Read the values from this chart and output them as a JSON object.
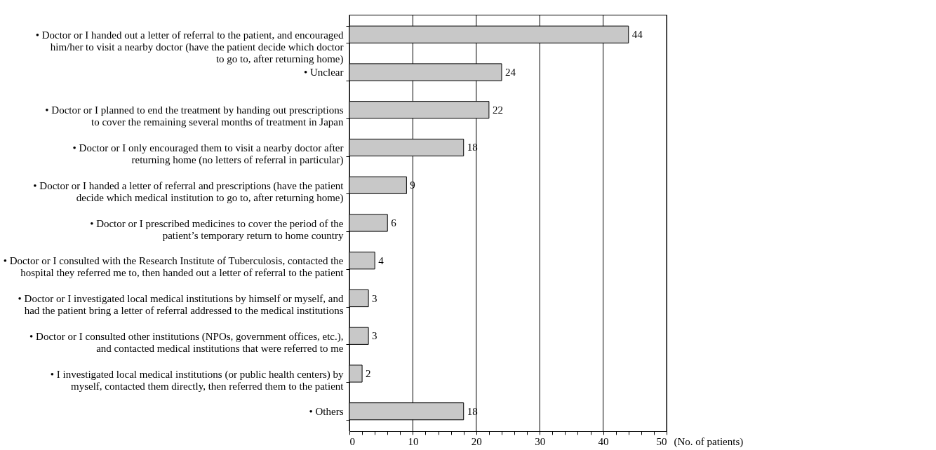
{
  "chart_data": {
    "type": "bar",
    "orientation": "horizontal",
    "categories": [
      "• Doctor or I handed out a letter of referral to the patient, and encouraged\nhim/her to visit a nearby doctor (have the patient decide which doctor\nto go to, after returning home)",
      "• Unclear",
      "• Doctor or I planned to end the treatment by handing out prescriptions\nto cover the remaining several months of treatment in Japan",
      "• Doctor or I only encouraged them to visit a nearby doctor after\nreturning home (no letters of  referral in particular)",
      "• Doctor or I  handed a letter of referral and prescriptions (have the patient\ndecide which medical institution to go to, after returning home)",
      "• Doctor or I prescribed medicines to cover the period of the\npatient’s temporary return to home country",
      "• Doctor or I consulted with the Research Institute of Tuberculosis, contacted the\nhospital they referred me to, then handed out a letter of referral to the patient",
      "• Doctor or I investigated local medical institutions by himself or myself, and\nhad the patient bring a letter of referral addressed to the medical institutions",
      "• Doctor or I consulted other institutions (NPOs, government offices, etc.),\nand contacted medical institutions that were referred to me",
      "• I investigated local medical institutions (or public health centers) by\nmyself, contacted them directly, then referred them to the patient",
      "• Others"
    ],
    "values": [
      44,
      24,
      22,
      18,
      9,
      6,
      4,
      3,
      3,
      2,
      18
    ],
    "color": "#c8c8c8",
    "data_labels": true,
    "xlabel": "(No. of patients)",
    "xlim": [
      0,
      50
    ],
    "xticks": [
      0,
      {
        "value": 2,
        "label": null
      },
      {
        "value": 4,
        "label": null
      },
      {
        "value": 6,
        "label": null
      },
      {
        "value": 8,
        "label": null
      },
      10,
      {
        "value": 12,
        "label": null
      },
      {
        "value": 14,
        "label": null
      },
      {
        "value": 16,
        "label": null
      },
      {
        "value": 18,
        "label": null
      },
      20,
      {
        "value": 22,
        "label": null
      },
      {
        "value": 24,
        "label": null
      },
      {
        "value": 26,
        "label": null
      },
      {
        "value": 28,
        "label": null
      },
      30,
      {
        "value": 32,
        "label": null
      },
      {
        "value": 34,
        "label": null
      },
      {
        "value": 36,
        "label": null
      },
      {
        "value": 38,
        "label": null
      },
      40,
      {
        "value": 42,
        "label": null
      },
      {
        "value": 44,
        "label": null
      },
      {
        "value": 46,
        "label": null
      },
      {
        "value": 48,
        "label": null
      },
      50
    ],
    "grid": "x"
  }
}
